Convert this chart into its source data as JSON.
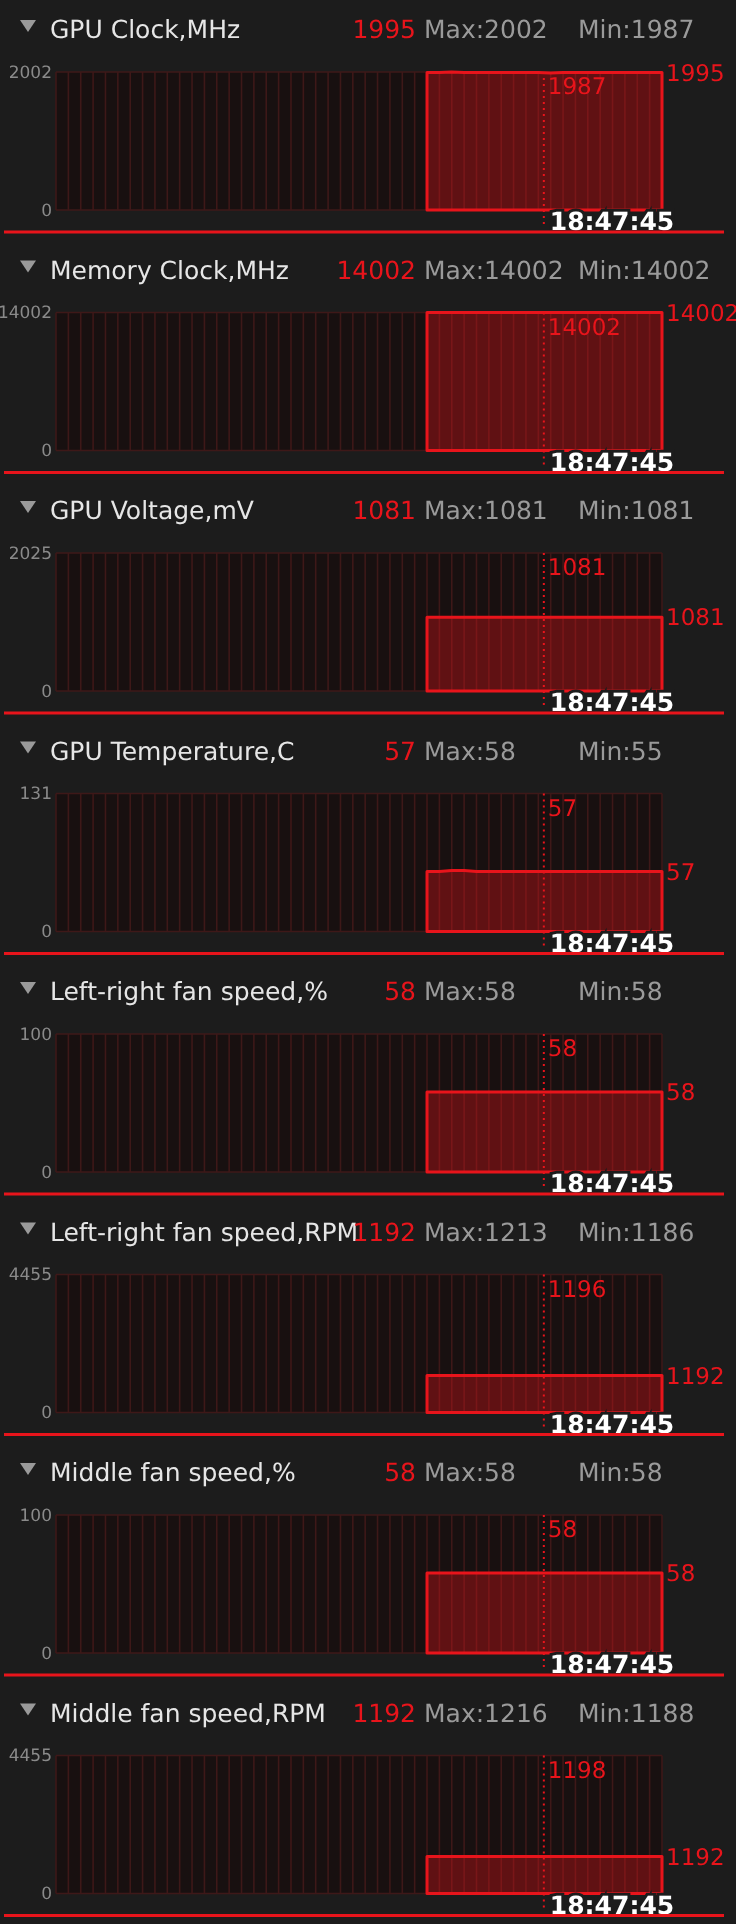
{
  "chart_data": [
    {
      "type": "area",
      "title": "GPU Clock,MHz",
      "categories": [
        null,
        null,
        null,
        null,
        null,
        null,
        null,
        null,
        null,
        null,
        null,
        null,
        null,
        null,
        null,
        null,
        null,
        null,
        null,
        null,
        null,
        null,
        null,
        null,
        null,
        null,
        null,
        null,
        null,
        null,
        null,
        null,
        null,
        null,
        null,
        null,
        null,
        null,
        null,
        null,
        null,
        null,
        null,
        null,
        null,
        null,
        null,
        null,
        null,
        null
      ],
      "series": [
        {
          "color": "#e8141b",
          "values": [
            null,
            null,
            null,
            null,
            null,
            null,
            null,
            null,
            null,
            null,
            null,
            null,
            null,
            null,
            null,
            null,
            null,
            null,
            null,
            null,
            null,
            null,
            null,
            null,
            null,
            null,
            null,
            null,
            null,
            null,
            1995,
            1995,
            2002,
            1995,
            1995,
            1995,
            1995,
            1995,
            1995,
            1995,
            1987,
            1995,
            1995,
            1995,
            1995,
            1995,
            1995,
            1995,
            1995,
            1995
          ]
        }
      ],
      "ylim": [
        0,
        2002
      ],
      "yticks": [
        0,
        2002
      ],
      "grid": true,
      "marker": "none",
      "annotations": [
        "1995",
        "Max:2002",
        "Min:1987",
        "1987",
        "1995",
        "18:47:45"
      ]
    },
    {
      "type": "area",
      "title": "Memory Clock,MHz",
      "categories": [
        null,
        null,
        null,
        null,
        null,
        null,
        null,
        null,
        null,
        null,
        null,
        null,
        null,
        null,
        null,
        null,
        null,
        null,
        null,
        null,
        null,
        null,
        null,
        null,
        null,
        null,
        null,
        null,
        null,
        null,
        null,
        null,
        null,
        null,
        null,
        null,
        null,
        null,
        null,
        null,
        null,
        null,
        null,
        null,
        null,
        null,
        null,
        null,
        null,
        null
      ],
      "series": [
        {
          "color": "#e8141b",
          "values": [
            null,
            null,
            null,
            null,
            null,
            null,
            null,
            null,
            null,
            null,
            null,
            null,
            null,
            null,
            null,
            null,
            null,
            null,
            null,
            null,
            null,
            null,
            null,
            null,
            null,
            null,
            null,
            null,
            null,
            null,
            14002,
            14002,
            14002,
            14002,
            14002,
            14002,
            14002,
            14002,
            14002,
            14002,
            14002,
            14002,
            14002,
            14002,
            14002,
            14002,
            14002,
            14002,
            14002,
            14002
          ]
        }
      ],
      "ylim": [
        0,
        14002
      ],
      "yticks": [
        0,
        14002
      ],
      "grid": true,
      "marker": "none",
      "annotations": [
        "14002",
        "Max:14002",
        "Min:14002",
        "14002",
        "14002",
        "18:47:45"
      ]
    },
    {
      "type": "area",
      "title": "GPU Voltage,mV",
      "categories": [
        null,
        null,
        null,
        null,
        null,
        null,
        null,
        null,
        null,
        null,
        null,
        null,
        null,
        null,
        null,
        null,
        null,
        null,
        null,
        null,
        null,
        null,
        null,
        null,
        null,
        null,
        null,
        null,
        null,
        null,
        null,
        null,
        null,
        null,
        null,
        null,
        null,
        null,
        null,
        null,
        null,
        null,
        null,
        null,
        null,
        null,
        null,
        null,
        null,
        null
      ],
      "series": [
        {
          "color": "#e8141b",
          "values": [
            null,
            null,
            null,
            null,
            null,
            null,
            null,
            null,
            null,
            null,
            null,
            null,
            null,
            null,
            null,
            null,
            null,
            null,
            null,
            null,
            null,
            null,
            null,
            null,
            null,
            null,
            null,
            null,
            null,
            null,
            1081,
            1081,
            1081,
            1081,
            1081,
            1081,
            1081,
            1081,
            1081,
            1081,
            1081,
            1081,
            1081,
            1081,
            1081,
            1081,
            1081,
            1081,
            1081,
            1081
          ]
        }
      ],
      "ylim": [
        0,
        2025
      ],
      "yticks": [
        0,
        2025
      ],
      "grid": true,
      "marker": "none",
      "annotations": [
        "1081",
        "Max:1081",
        "Min:1081",
        "1081",
        "1081",
        "18:47:45"
      ]
    },
    {
      "type": "area",
      "title": "GPU Temperature,C",
      "categories": [
        null,
        null,
        null,
        null,
        null,
        null,
        null,
        null,
        null,
        null,
        null,
        null,
        null,
        null,
        null,
        null,
        null,
        null,
        null,
        null,
        null,
        null,
        null,
        null,
        null,
        null,
        null,
        null,
        null,
        null,
        null,
        null,
        null,
        null,
        null,
        null,
        null,
        null,
        null,
        null,
        null,
        null,
        null,
        null,
        null,
        null,
        null,
        null,
        null,
        null
      ],
      "series": [
        {
          "color": "#e8141b",
          "values": [
            null,
            null,
            null,
            null,
            null,
            null,
            null,
            null,
            null,
            null,
            null,
            null,
            null,
            null,
            null,
            null,
            null,
            null,
            null,
            null,
            null,
            null,
            null,
            null,
            null,
            null,
            null,
            null,
            null,
            null,
            57,
            57,
            58,
            58,
            57,
            57,
            57,
            57,
            57,
            57,
            57,
            57,
            57,
            57,
            57,
            57,
            57,
            57,
            57,
            57
          ]
        }
      ],
      "ylim": [
        0,
        131
      ],
      "yticks": [
        0,
        131
      ],
      "grid": true,
      "marker": "none",
      "annotations": [
        "57",
        "Max:58",
        "Min:55",
        "57",
        "57",
        "18:47:45"
      ]
    },
    {
      "type": "area",
      "title": "Left-right fan speed,%",
      "categories": [
        null,
        null,
        null,
        null,
        null,
        null,
        null,
        null,
        null,
        null,
        null,
        null,
        null,
        null,
        null,
        null,
        null,
        null,
        null,
        null,
        null,
        null,
        null,
        null,
        null,
        null,
        null,
        null,
        null,
        null,
        null,
        null,
        null,
        null,
        null,
        null,
        null,
        null,
        null,
        null,
        null,
        null,
        null,
        null,
        null,
        null,
        null,
        null,
        null,
        null
      ],
      "series": [
        {
          "color": "#e8141b",
          "values": [
            null,
            null,
            null,
            null,
            null,
            null,
            null,
            null,
            null,
            null,
            null,
            null,
            null,
            null,
            null,
            null,
            null,
            null,
            null,
            null,
            null,
            null,
            null,
            null,
            null,
            null,
            null,
            null,
            null,
            null,
            58,
            58,
            58,
            58,
            58,
            58,
            58,
            58,
            58,
            58,
            58,
            58,
            58,
            58,
            58,
            58,
            58,
            58,
            58,
            58
          ]
        }
      ],
      "ylim": [
        0,
        100
      ],
      "yticks": [
        0,
        100
      ],
      "grid": true,
      "marker": "none",
      "annotations": [
        "58",
        "Max:58",
        "Min:58",
        "58",
        "58",
        "18:47:45"
      ]
    },
    {
      "type": "area",
      "title": "Left-right fan speed,RPM",
      "categories": [
        null,
        null,
        null,
        null,
        null,
        null,
        null,
        null,
        null,
        null,
        null,
        null,
        null,
        null,
        null,
        null,
        null,
        null,
        null,
        null,
        null,
        null,
        null,
        null,
        null,
        null,
        null,
        null,
        null,
        null,
        null,
        null,
        null,
        null,
        null,
        null,
        null,
        null,
        null,
        null,
        null,
        null,
        null,
        null,
        null,
        null,
        null,
        null,
        null,
        null
      ],
      "series": [
        {
          "color": "#e8141b",
          "values": [
            null,
            null,
            null,
            null,
            null,
            null,
            null,
            null,
            null,
            null,
            null,
            null,
            null,
            null,
            null,
            null,
            null,
            null,
            null,
            null,
            null,
            null,
            null,
            null,
            null,
            null,
            null,
            null,
            null,
            null,
            1192,
            1192,
            1192,
            1192,
            1192,
            1192,
            1192,
            1192,
            1192,
            1192,
            1196,
            1192,
            1192,
            1192,
            1192,
            1192,
            1192,
            1192,
            1192,
            1192
          ]
        }
      ],
      "ylim": [
        0,
        4455
      ],
      "yticks": [
        0,
        4455
      ],
      "grid": true,
      "marker": "none",
      "annotations": [
        "1192",
        "Max:1213",
        "Min:1186",
        "1196",
        "1192",
        "18:47:45"
      ]
    },
    {
      "type": "area",
      "title": "Middle fan speed,%",
      "categories": [
        null,
        null,
        null,
        null,
        null,
        null,
        null,
        null,
        null,
        null,
        null,
        null,
        null,
        null,
        null,
        null,
        null,
        null,
        null,
        null,
        null,
        null,
        null,
        null,
        null,
        null,
        null,
        null,
        null,
        null,
        null,
        null,
        null,
        null,
        null,
        null,
        null,
        null,
        null,
        null,
        null,
        null,
        null,
        null,
        null,
        null,
        null,
        null,
        null,
        null
      ],
      "series": [
        {
          "color": "#e8141b",
          "values": [
            null,
            null,
            null,
            null,
            null,
            null,
            null,
            null,
            null,
            null,
            null,
            null,
            null,
            null,
            null,
            null,
            null,
            null,
            null,
            null,
            null,
            null,
            null,
            null,
            null,
            null,
            null,
            null,
            null,
            null,
            58,
            58,
            58,
            58,
            58,
            58,
            58,
            58,
            58,
            58,
            58,
            58,
            58,
            58,
            58,
            58,
            58,
            58,
            58,
            58
          ]
        }
      ],
      "ylim": [
        0,
        100
      ],
      "yticks": [
        0,
        100
      ],
      "grid": true,
      "marker": "none",
      "annotations": [
        "58",
        "Max:58",
        "Min:58",
        "58",
        "58",
        "18:47:45"
      ]
    },
    {
      "type": "area",
      "title": "Middle fan speed,RPM",
      "categories": [
        null,
        null,
        null,
        null,
        null,
        null,
        null,
        null,
        null,
        null,
        null,
        null,
        null,
        null,
        null,
        null,
        null,
        null,
        null,
        null,
        null,
        null,
        null,
        null,
        null,
        null,
        null,
        null,
        null,
        null,
        null,
        null,
        null,
        null,
        null,
        null,
        null,
        null,
        null,
        null,
        null,
        null,
        null,
        null,
        null,
        null,
        null,
        null,
        null,
        null
      ],
      "series": [
        {
          "color": "#e8141b",
          "values": [
            null,
            null,
            null,
            null,
            null,
            null,
            null,
            null,
            null,
            null,
            null,
            null,
            null,
            null,
            null,
            null,
            null,
            null,
            null,
            null,
            null,
            null,
            null,
            null,
            null,
            null,
            null,
            null,
            null,
            null,
            1192,
            1192,
            1192,
            1192,
            1192,
            1192,
            1192,
            1192,
            1192,
            1192,
            1198,
            1192,
            1192,
            1192,
            1192,
            1192,
            1192,
            1192,
            1192,
            1192
          ]
        }
      ],
      "ylim": [
        0,
        4455
      ],
      "yticks": [
        0,
        4455
      ],
      "grid": true,
      "marker": "none",
      "annotations": [
        "1192",
        "Max:1216",
        "Min:1188",
        "1198",
        "1192",
        "18:47:45"
      ]
    }
  ]
}
